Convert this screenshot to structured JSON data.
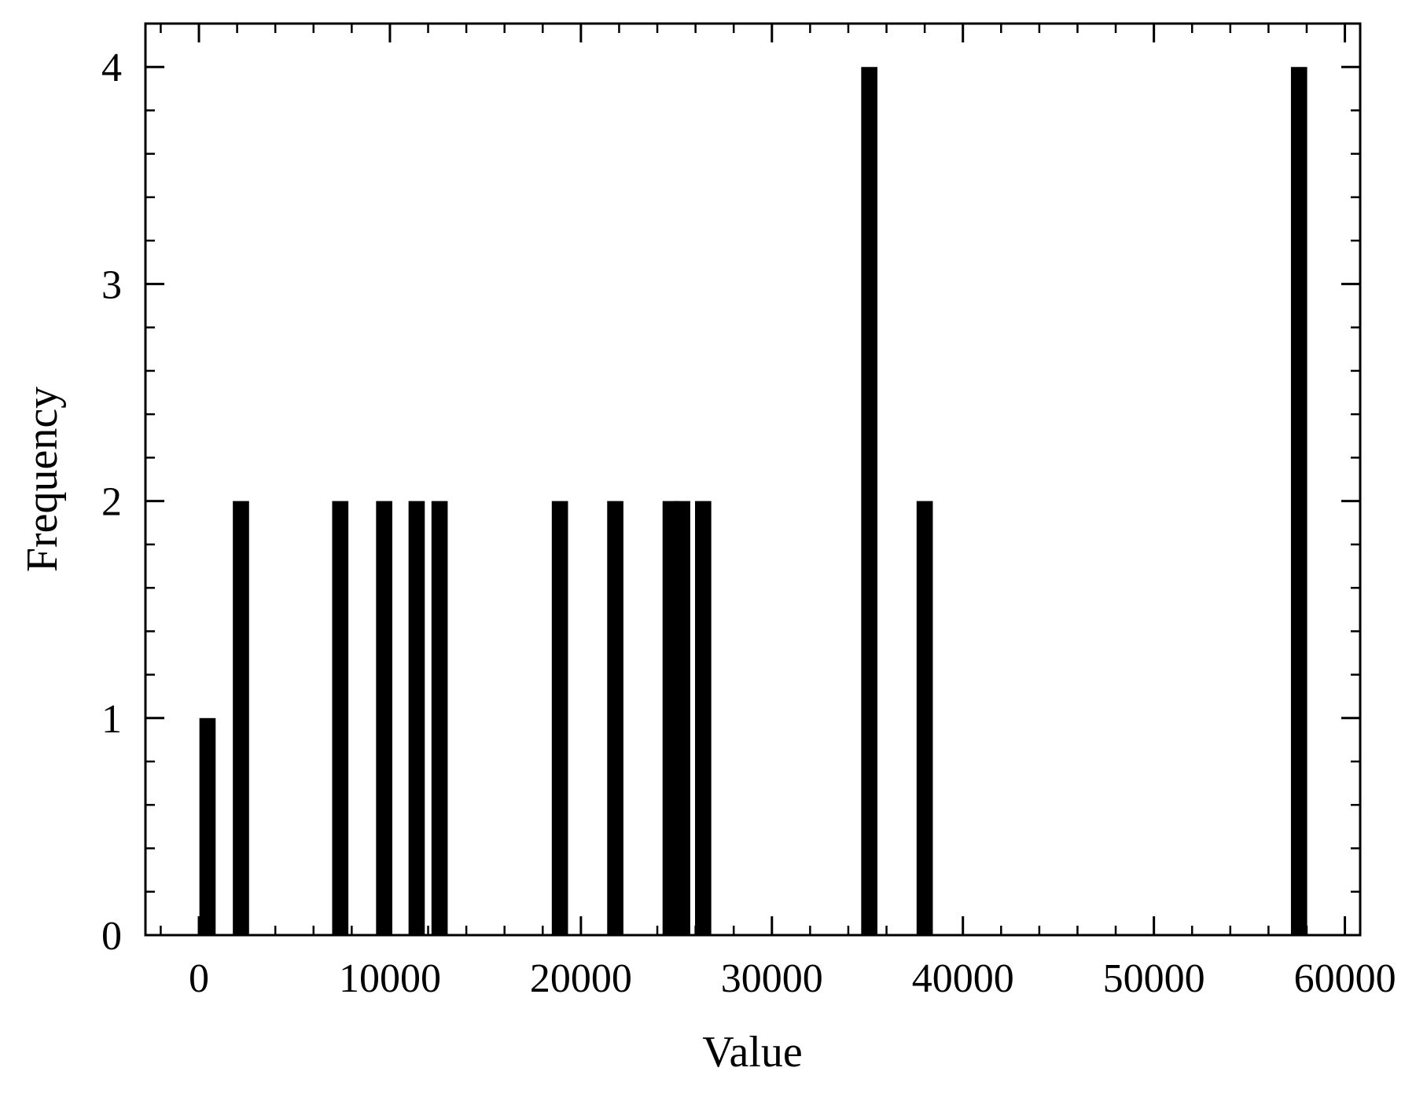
{
  "chart_data": {
    "type": "bar",
    "title": "",
    "xlabel": "Value",
    "ylabel": "Frequency",
    "xlim": [
      -2800,
      60800
    ],
    "ylim": [
      0,
      4.2
    ],
    "xticks": [
      0,
      10000,
      20000,
      30000,
      40000,
      50000,
      60000
    ],
    "xtick_labels": [
      "0",
      "10000",
      "20000",
      "30000",
      "40000",
      "50000",
      "60000"
    ],
    "yticks": [
      0,
      1,
      2,
      3,
      4
    ],
    "ytick_labels": [
      "0",
      "1",
      "2",
      "3",
      "4"
    ],
    "grid": false,
    "bar_width": 850,
    "bars": [
      {
        "x": 450,
        "value": 1
      },
      {
        "x": 2200,
        "value": 2
      },
      {
        "x": 7400,
        "value": 2
      },
      {
        "x": 9700,
        "value": 2
      },
      {
        "x": 11400,
        "value": 2
      },
      {
        "x": 12600,
        "value": 2
      },
      {
        "x": 18900,
        "value": 2
      },
      {
        "x": 21800,
        "value": 2
      },
      {
        "x": 24700,
        "value": 2
      },
      {
        "x": 25300,
        "value": 2
      },
      {
        "x": 26400,
        "value": 2
      },
      {
        "x": 35100,
        "value": 4
      },
      {
        "x": 38000,
        "value": 2
      },
      {
        "x": 57600,
        "value": 4
      }
    ],
    "colors": {
      "bar": "#000000",
      "axis": "#000000"
    }
  }
}
